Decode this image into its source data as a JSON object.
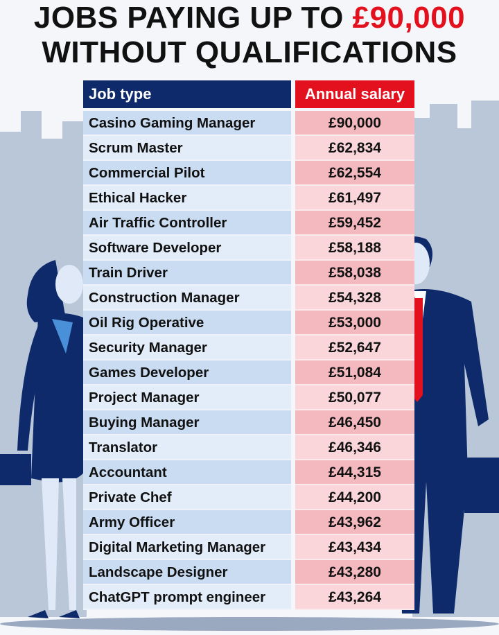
{
  "title": {
    "line1_prefix": "JOBS PAYING UP TO ",
    "line1_highlight": "£90,000",
    "line2": "WITHOUT QUALIFICATIONS"
  },
  "colors": {
    "header_job": "#0e2a6b",
    "header_salary": "#e3101e",
    "highlight": "#e3101e"
  },
  "chart_data": {
    "type": "table",
    "columns": [
      "Job type",
      "Annual salary"
    ],
    "rows": [
      [
        "Casino Gaming Manager",
        "£90,000"
      ],
      [
        "Scrum Master",
        "£62,834"
      ],
      [
        "Commercial Pilot",
        "£62,554"
      ],
      [
        "Ethical Hacker",
        "£61,497"
      ],
      [
        "Air Traffic Controller",
        "£59,452"
      ],
      [
        "Software Developer",
        "£58,188"
      ],
      [
        "Train Driver",
        "£58,038"
      ],
      [
        "Construction Manager",
        "£54,328"
      ],
      [
        "Oil Rig Operative",
        "£53,000"
      ],
      [
        "Security Manager",
        "£52,647"
      ],
      [
        "Games Developer",
        "£51,084"
      ],
      [
        "Project Manager",
        "£50,077"
      ],
      [
        "Buying Manager",
        "£46,450"
      ],
      [
        "Translator",
        "£46,346"
      ],
      [
        "Accountant",
        "£44,315"
      ],
      [
        "Private Chef",
        "£44,200"
      ],
      [
        "Army Officer",
        "£43,962"
      ],
      [
        "Digital Marketing Manager",
        "£43,434"
      ],
      [
        "Landscape Designer",
        "£43,280"
      ],
      [
        "ChatGPT prompt engineer",
        "£43,264"
      ]
    ]
  }
}
